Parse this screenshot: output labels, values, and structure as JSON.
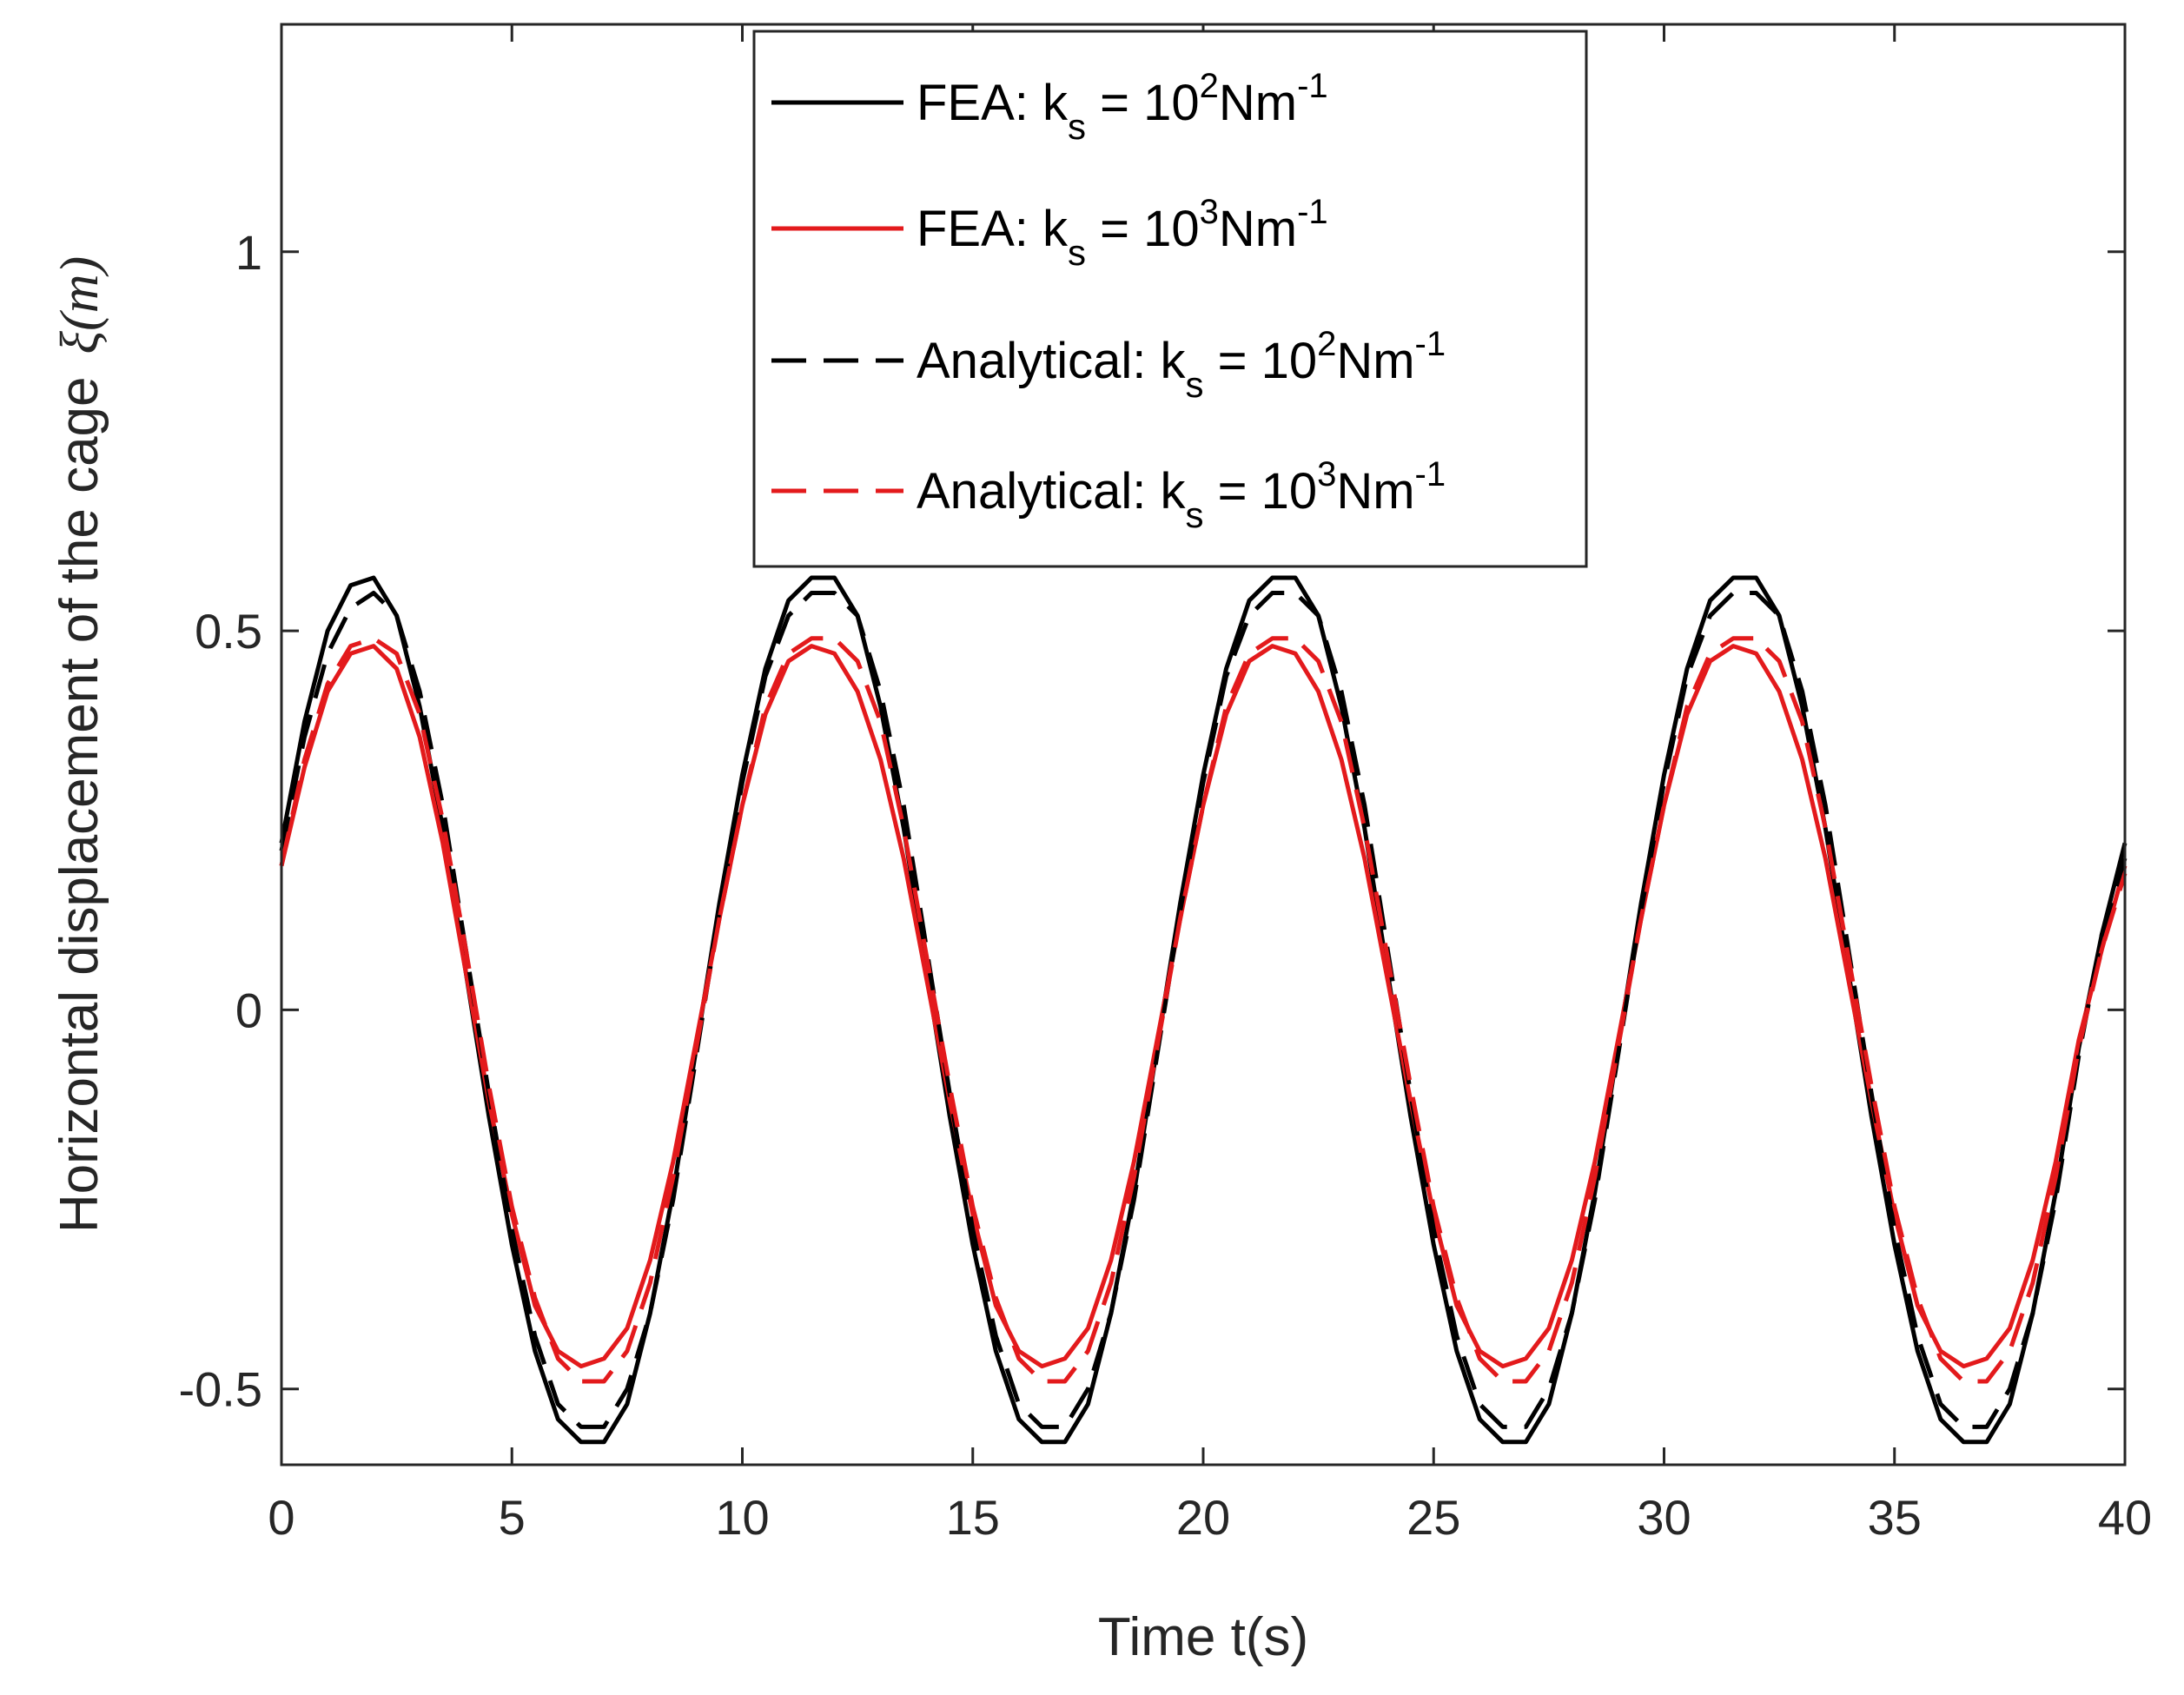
{
  "chart_data": {
    "type": "line",
    "xlabel": "Time t(s)",
    "ylabel_text": "Horizontal displacement of the cage",
    "ylabel_symbol": "ξ(m)",
    "xlim": [
      0,
      40
    ],
    "ylim": [
      -0.6,
      1.3
    ],
    "xticks": [
      0,
      5,
      10,
      15,
      20,
      25,
      30,
      35,
      40
    ],
    "xtick_labels": [
      "0",
      "5",
      "10",
      "15",
      "20",
      "25",
      "30",
      "35",
      "40"
    ],
    "yticks": [
      -0.5,
      0,
      0.5,
      1
    ],
    "ytick_labels": [
      "-0.5",
      "0",
      "0.5",
      "1"
    ],
    "grid": false,
    "legend_position": "top-center",
    "series": [
      {
        "name": "FEA: k_s = 10^2 Nm^-1",
        "label_prefix": "FEA: k",
        "label_sub": "s",
        "label_mid": " = 10",
        "label_sup1": "2",
        "label_unit": "Nm",
        "label_sup2": "-1",
        "color": "#000000",
        "style": "solid",
        "x": [
          0,
          0.5,
          1,
          1.5,
          2,
          2.5,
          3,
          3.5,
          4,
          4.5,
          5,
          5.5,
          6,
          6.5,
          7,
          7.5,
          8,
          8.5,
          9,
          9.5,
          10,
          10.5,
          11,
          11.5,
          12,
          12.5,
          13,
          13.5,
          14,
          14.5,
          15,
          15.5,
          16,
          16.5,
          17,
          17.5,
          18,
          18.5,
          19,
          19.5,
          20,
          20.5,
          21,
          21.5,
          22,
          22.5,
          23,
          23.5,
          24,
          24.5,
          25,
          25.5,
          26,
          26.5,
          27,
          27.5,
          28,
          28.5,
          29,
          29.5,
          30,
          30.5,
          31,
          31.5,
          32,
          32.5,
          33,
          33.5,
          34,
          34.5,
          35,
          35.5,
          36,
          36.5,
          37,
          37.5,
          38,
          38.5,
          39,
          39.5,
          40
        ],
        "values": [
          0.22,
          0.38,
          0.5,
          0.56,
          0.57,
          0.52,
          0.4,
          0.24,
          0.05,
          -0.14,
          -0.31,
          -0.45,
          -0.54,
          -0.57,
          -0.57,
          -0.52,
          -0.4,
          -0.24,
          -0.05,
          0.14,
          0.31,
          0.45,
          0.54,
          0.57,
          0.57,
          0.52,
          0.4,
          0.24,
          0.05,
          -0.14,
          -0.31,
          -0.45,
          -0.54,
          -0.57,
          -0.57,
          -0.52,
          -0.4,
          -0.24,
          -0.05,
          0.14,
          0.31,
          0.45,
          0.54,
          0.57,
          0.57,
          0.52,
          0.4,
          0.24,
          0.05,
          -0.14,
          -0.31,
          -0.45,
          -0.54,
          -0.57,
          -0.57,
          -0.52,
          -0.4,
          -0.24,
          -0.05,
          0.14,
          0.31,
          0.45,
          0.54,
          0.57,
          0.57,
          0.52,
          0.4,
          0.24,
          0.05,
          -0.14,
          -0.31,
          -0.45,
          -0.54,
          -0.57,
          -0.57,
          -0.52,
          -0.4,
          -0.24,
          -0.05,
          0.1,
          0.22
        ]
      },
      {
        "name": "FEA: k_s = 10^3 Nm^-1",
        "label_prefix": "FEA: k",
        "label_sub": "s",
        "label_mid": " = 10",
        "label_sup1": "3",
        "label_unit": "Nm",
        "label_sup2": "-1",
        "color": "#e31a1c",
        "style": "solid",
        "x": [
          0,
          0.5,
          1,
          1.5,
          2,
          2.5,
          3,
          3.5,
          4,
          4.5,
          5,
          5.5,
          6,
          6.5,
          7,
          7.5,
          8,
          8.5,
          9,
          9.5,
          10,
          10.5,
          11,
          11.5,
          12,
          12.5,
          13,
          13.5,
          14,
          14.5,
          15,
          15.5,
          16,
          16.5,
          17,
          17.5,
          18,
          18.5,
          19,
          19.5,
          20,
          20.5,
          21,
          21.5,
          22,
          22.5,
          23,
          23.5,
          24,
          24.5,
          25,
          25.5,
          26,
          26.5,
          27,
          27.5,
          28,
          28.5,
          29,
          29.5,
          30,
          30.5,
          31,
          31.5,
          32,
          32.5,
          33,
          33.5,
          34,
          34.5,
          35,
          35.5,
          36,
          36.5,
          37,
          37.5,
          38,
          38.5,
          39,
          39.5,
          40
        ],
        "values": [
          0.19,
          0.32,
          0.42,
          0.47,
          0.48,
          0.45,
          0.36,
          0.22,
          0.05,
          -0.12,
          -0.27,
          -0.39,
          -0.45,
          -0.47,
          -0.46,
          -0.42,
          -0.33,
          -0.2,
          -0.04,
          0.12,
          0.27,
          0.39,
          0.46,
          0.48,
          0.47,
          0.42,
          0.33,
          0.2,
          0.04,
          -0.12,
          -0.27,
          -0.39,
          -0.45,
          -0.47,
          -0.46,
          -0.42,
          -0.33,
          -0.2,
          -0.04,
          0.12,
          0.27,
          0.39,
          0.46,
          0.48,
          0.47,
          0.42,
          0.33,
          0.2,
          0.04,
          -0.12,
          -0.27,
          -0.39,
          -0.45,
          -0.47,
          -0.46,
          -0.42,
          -0.33,
          -0.2,
          -0.04,
          0.12,
          0.27,
          0.39,
          0.46,
          0.48,
          0.47,
          0.42,
          0.33,
          0.2,
          0.04,
          -0.12,
          -0.27,
          -0.39,
          -0.45,
          -0.47,
          -0.46,
          -0.42,
          -0.33,
          -0.2,
          -0.04,
          0.08,
          0.19
        ]
      },
      {
        "name": "Analytical: k_s = 10^2 Nm^-1",
        "label_prefix": "Analytical: k",
        "label_sub": "s",
        "label_mid": " = 10",
        "label_sup1": "2",
        "label_unit": "Nm",
        "label_sup2": "-1",
        "color": "#000000",
        "style": "dashed",
        "x": [
          0,
          0.5,
          1,
          1.5,
          2,
          2.5,
          3,
          3.5,
          4,
          4.5,
          5,
          5.5,
          6,
          6.5,
          7,
          7.5,
          8,
          8.5,
          9,
          9.5,
          10,
          10.5,
          11,
          11.5,
          12,
          12.5,
          13,
          13.5,
          14,
          14.5,
          15,
          15.5,
          16,
          16.5,
          17,
          17.5,
          18,
          18.5,
          19,
          19.5,
          20,
          20.5,
          21,
          21.5,
          22,
          22.5,
          23,
          23.5,
          24,
          24.5,
          25,
          25.5,
          26,
          26.5,
          27,
          27.5,
          28,
          28.5,
          29,
          29.5,
          30,
          30.5,
          31,
          31.5,
          32,
          32.5,
          33,
          33.5,
          34,
          34.5,
          35,
          35.5,
          36,
          36.5,
          37,
          37.5,
          38,
          38.5,
          39,
          39.5,
          40
        ],
        "values": [
          0.21,
          0.36,
          0.47,
          0.53,
          0.55,
          0.52,
          0.42,
          0.27,
          0.08,
          -0.11,
          -0.29,
          -0.43,
          -0.52,
          -0.55,
          -0.55,
          -0.5,
          -0.4,
          -0.25,
          -0.06,
          0.13,
          0.3,
          0.44,
          0.52,
          0.55,
          0.55,
          0.52,
          0.42,
          0.27,
          0.08,
          -0.11,
          -0.29,
          -0.43,
          -0.52,
          -0.55,
          -0.55,
          -0.5,
          -0.4,
          -0.25,
          -0.06,
          0.13,
          0.3,
          0.44,
          0.52,
          0.55,
          0.55,
          0.52,
          0.42,
          0.27,
          0.08,
          -0.11,
          -0.29,
          -0.43,
          -0.52,
          -0.55,
          -0.55,
          -0.5,
          -0.4,
          -0.25,
          -0.06,
          0.13,
          0.3,
          0.44,
          0.52,
          0.55,
          0.55,
          0.52,
          0.42,
          0.27,
          0.08,
          -0.11,
          -0.29,
          -0.43,
          -0.52,
          -0.55,
          -0.55,
          -0.5,
          -0.4,
          -0.25,
          -0.06,
          0.1,
          0.2
        ]
      },
      {
        "name": "Analytical: k_s = 10^3 Nm^-1",
        "label_prefix": "Analytical: k",
        "label_sub": "s",
        "label_mid": " = 10",
        "label_sup1": "3",
        "label_unit": "Nm",
        "label_sup2": "-1",
        "color": "#e31a1c",
        "style": "dashed",
        "x": [
          0,
          0.5,
          1,
          1.5,
          2,
          2.5,
          3,
          3.5,
          4,
          4.5,
          5,
          5.5,
          6,
          6.5,
          7,
          7.5,
          8,
          8.5,
          9,
          9.5,
          10,
          10.5,
          11,
          11.5,
          12,
          12.5,
          13,
          13.5,
          14,
          14.5,
          15,
          15.5,
          16,
          16.5,
          17,
          17.5,
          18,
          18.5,
          19,
          19.5,
          20,
          20.5,
          21,
          21.5,
          22,
          22.5,
          23,
          23.5,
          24,
          24.5,
          25,
          25.5,
          26,
          26.5,
          27,
          27.5,
          28,
          28.5,
          29,
          29.5,
          30,
          30.5,
          31,
          31.5,
          32,
          32.5,
          33,
          33.5,
          34,
          34.5,
          35,
          35.5,
          36,
          36.5,
          37,
          37.5,
          38,
          38.5,
          39,
          39.5,
          40
        ],
        "values": [
          0.19,
          0.33,
          0.43,
          0.48,
          0.49,
          0.47,
          0.39,
          0.25,
          0.08,
          -0.1,
          -0.26,
          -0.38,
          -0.46,
          -0.49,
          -0.49,
          -0.45,
          -0.36,
          -0.22,
          -0.05,
          0.12,
          0.27,
          0.4,
          0.47,
          0.49,
          0.49,
          0.46,
          0.38,
          0.24,
          0.07,
          -0.1,
          -0.26,
          -0.38,
          -0.46,
          -0.49,
          -0.49,
          -0.45,
          -0.36,
          -0.22,
          -0.05,
          0.12,
          0.27,
          0.4,
          0.47,
          0.49,
          0.49,
          0.46,
          0.38,
          0.24,
          0.07,
          -0.1,
          -0.26,
          -0.38,
          -0.46,
          -0.49,
          -0.49,
          -0.45,
          -0.36,
          -0.22,
          -0.05,
          0.12,
          0.27,
          0.4,
          0.47,
          0.49,
          0.49,
          0.46,
          0.38,
          0.24,
          0.07,
          -0.1,
          -0.26,
          -0.38,
          -0.46,
          -0.49,
          -0.49,
          -0.45,
          -0.36,
          -0.22,
          -0.05,
          0.08,
          0.18
        ]
      }
    ]
  }
}
